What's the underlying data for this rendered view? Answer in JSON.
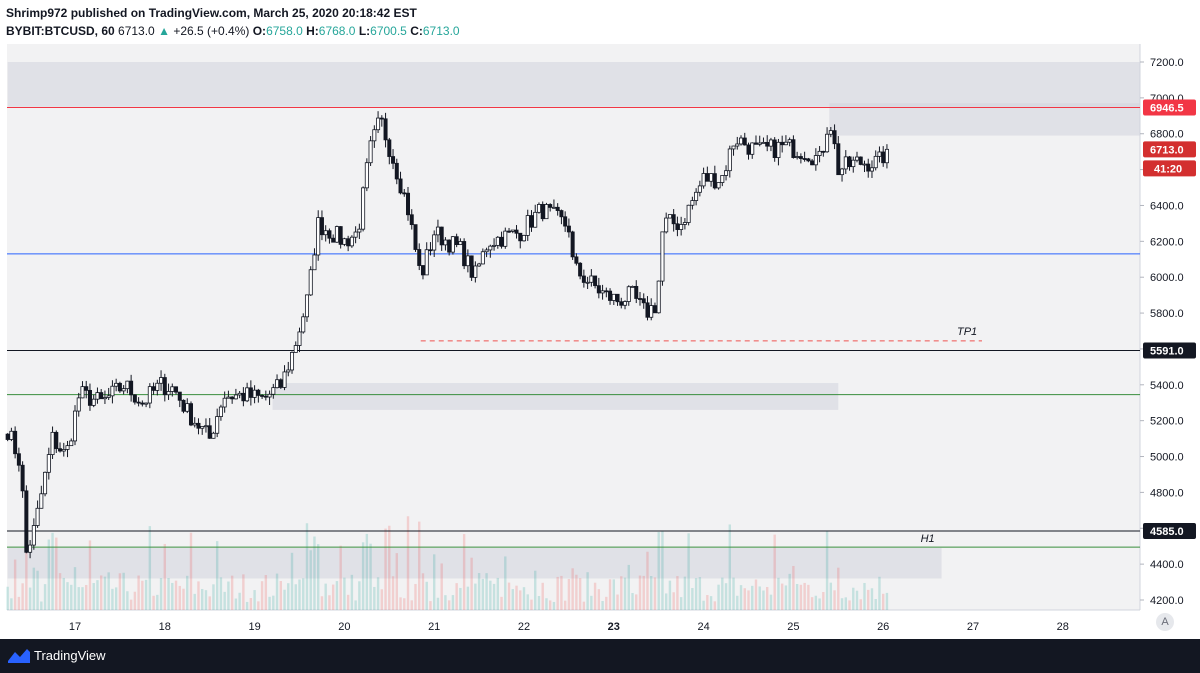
{
  "header": {
    "line1": "Shrimp972 published on TradingView.com, March 25, 2020 20:18:42 EST",
    "symbol": "BYBIT:BTCUSD, 60",
    "last": "6713.0",
    "change_arrow": "▲",
    "change": "+26.5 (+0.4%)",
    "o_label": "O:",
    "o_value": "6758.0",
    "h_label": "H:",
    "h_value": "6768.0",
    "l_label": "L:",
    "l_value": "6700.5",
    "c_label": "C:",
    "c_value": "6713.0"
  },
  "footer": {
    "brand": "TradingView",
    "auto_label": "A"
  },
  "colors": {
    "up": "#26a69a",
    "down": "#ef5350",
    "candle_body": "#131722",
    "zone": "#d1d4dc",
    "resistance": "#f23645",
    "support_blue": "#2962ff",
    "support_green": "#388e3c"
  },
  "chart_data": {
    "type": "candlestick",
    "ylim": [
      4100,
      7300
    ],
    "y_ticks": [
      4200,
      4400,
      4600,
      4800,
      5000,
      5200,
      5400,
      5600,
      5800,
      6000,
      6200,
      6400,
      6600,
      6800,
      7000,
      7200
    ],
    "y_tick_labels": [
      "4200.0",
      "4400.0",
      "4600.0",
      "4800.0",
      "5000.0",
      "5200.0",
      "5400.0",
      "5600.0",
      "5800.0",
      "6000.0",
      "6200.0",
      "6400.0",
      "6600.0",
      "6800.0",
      "7000.0",
      "7200.0"
    ],
    "x_ticks": [
      "17",
      "18",
      "19",
      "20",
      "21",
      "22",
      "23",
      "24",
      "25",
      "26",
      "27",
      "28"
    ],
    "x_range_days": [
      16.25,
      29.0
    ],
    "grid": false,
    "price_labels": [
      {
        "value": 6946.5,
        "text": "6946.5",
        "color": "#f23645"
      },
      {
        "value": 6713.0,
        "text": "6713.0",
        "color": "#d32f2f"
      },
      {
        "value": 5591.0,
        "text": "5591.0",
        "color": "#131722"
      },
      {
        "value": 4585.0,
        "text": "4585.0",
        "color": "#131722"
      }
    ],
    "countdown": "41:20",
    "horizontal_lines": [
      {
        "value": 6946.5,
        "color": "#f23645"
      },
      {
        "value": 6130,
        "color": "#2962ff"
      },
      {
        "value": 5591.0,
        "color": "#131722"
      },
      {
        "value": 5345,
        "color": "#388e3c"
      },
      {
        "value": 4585.0,
        "color": "#131722"
      },
      {
        "value": 4495,
        "color": "#388e3c"
      }
    ],
    "zones": [
      {
        "y1": 6950,
        "y2": 7200,
        "x1": 16.25,
        "x2": 28.9
      },
      {
        "y1": 6790,
        "y2": 6970,
        "x1": 25.4,
        "x2": 28.9
      },
      {
        "y1": 5260,
        "y2": 5410,
        "x1": 19.2,
        "x2": 25.5
      },
      {
        "y1": 4320,
        "y2": 4490,
        "x1": 16.25,
        "x2": 26.65
      }
    ],
    "annotations": [
      {
        "text": "TP1",
        "value": 5645,
        "x_start": 20.85,
        "x_end": 27.1,
        "style": "dashed",
        "color": "#ef5350"
      },
      {
        "text": "H1",
        "value": 4495,
        "x": 26.55
      }
    ],
    "series": [
      {
        "name": "BTCUSD",
        "interval": "60",
        "last_close": 6713.0,
        "anchors": [
          {
            "x": 16.25,
            "p": 5150
          },
          {
            "x": 16.4,
            "p": 4950
          },
          {
            "x": 16.45,
            "p": 4450
          },
          {
            "x": 16.55,
            "p": 4600
          },
          {
            "x": 16.75,
            "p": 5100
          },
          {
            "x": 16.9,
            "p": 5000
          },
          {
            "x": 17.05,
            "p": 5350
          },
          {
            "x": 17.3,
            "p": 5300
          },
          {
            "x": 17.55,
            "p": 5400
          },
          {
            "x": 17.75,
            "p": 5300
          },
          {
            "x": 17.95,
            "p": 5400
          },
          {
            "x": 18.1,
            "p": 5380
          },
          {
            "x": 18.25,
            "p": 5250
          },
          {
            "x": 18.5,
            "p": 5100
          },
          {
            "x": 18.65,
            "p": 5340
          },
          {
            "x": 18.9,
            "p": 5340
          },
          {
            "x": 19.1,
            "p": 5320
          },
          {
            "x": 19.3,
            "p": 5400
          },
          {
            "x": 19.45,
            "p": 5620
          },
          {
            "x": 19.6,
            "p": 5900
          },
          {
            "x": 19.7,
            "p": 6300
          },
          {
            "x": 20.0,
            "p": 6200
          },
          {
            "x": 20.15,
            "p": 6250
          },
          {
            "x": 20.28,
            "p": 6700
          },
          {
            "x": 20.4,
            "p": 6880
          },
          {
            "x": 20.55,
            "p": 6650
          },
          {
            "x": 20.7,
            "p": 6400
          },
          {
            "x": 20.85,
            "p": 6000
          },
          {
            "x": 21.0,
            "p": 6250
          },
          {
            "x": 21.15,
            "p": 6200
          },
          {
            "x": 21.3,
            "p": 6150
          },
          {
            "x": 21.45,
            "p": 6000
          },
          {
            "x": 21.6,
            "p": 6200
          },
          {
            "x": 21.95,
            "p": 6250
          },
          {
            "x": 22.2,
            "p": 6380
          },
          {
            "x": 22.5,
            "p": 6280
          },
          {
            "x": 22.55,
            "p": 6050
          },
          {
            "x": 22.9,
            "p": 5900
          },
          {
            "x": 23.05,
            "p": 5870
          },
          {
            "x": 23.2,
            "p": 5900
          },
          {
            "x": 23.35,
            "p": 5800
          },
          {
            "x": 23.48,
            "p": 5850
          },
          {
            "x": 23.55,
            "p": 6300
          },
          {
            "x": 23.75,
            "p": 6300
          },
          {
            "x": 24.0,
            "p": 6550
          },
          {
            "x": 24.2,
            "p": 6550
          },
          {
            "x": 24.35,
            "p": 6780
          },
          {
            "x": 24.6,
            "p": 6700
          },
          {
            "x": 24.9,
            "p": 6730
          },
          {
            "x": 25.15,
            "p": 6700
          },
          {
            "x": 25.3,
            "p": 6650
          },
          {
            "x": 25.4,
            "p": 6900
          },
          {
            "x": 25.5,
            "p": 6600
          },
          {
            "x": 25.7,
            "p": 6640
          },
          {
            "x": 25.95,
            "p": 6640
          },
          {
            "x": 26.05,
            "p": 6713
          }
        ]
      }
    ]
  }
}
